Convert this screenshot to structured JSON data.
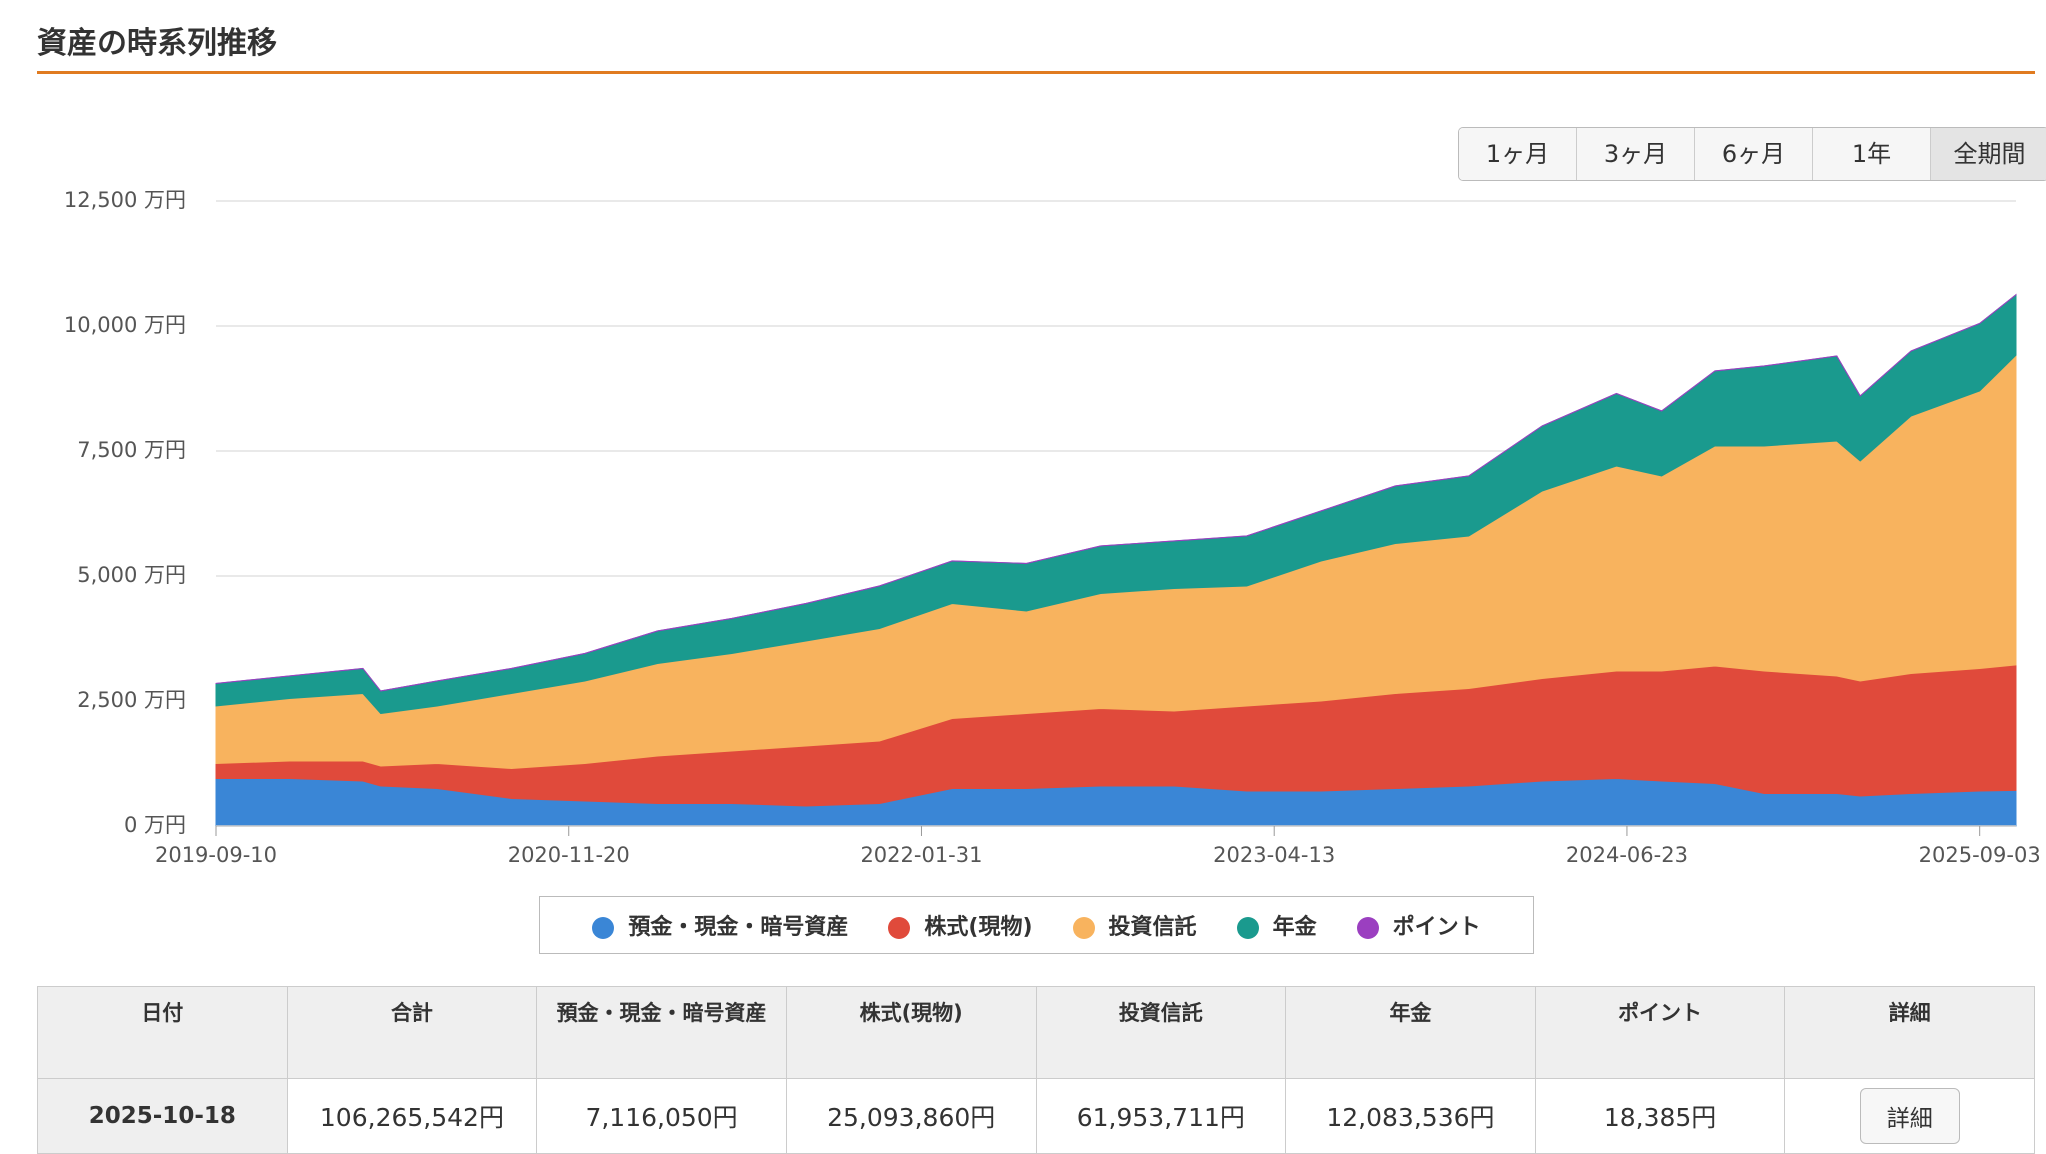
{
  "header": {
    "title": "資産の時系列推移"
  },
  "range_buttons": [
    "1ヶ月",
    "3ヶ月",
    "6ヶ月",
    "1年",
    "全期間"
  ],
  "chart_data": {
    "type": "stacked-area",
    "x": [
      "2019-09-10",
      "2019-12-10",
      "2020-03-10",
      "2020-04-01",
      "2020-06-10",
      "2020-09-10",
      "2020-12-10",
      "2021-03-10",
      "2021-06-10",
      "2021-09-10",
      "2021-12-10",
      "2022-03-10",
      "2022-06-10",
      "2022-09-10",
      "2022-12-10",
      "2023-03-10",
      "2023-06-10",
      "2023-09-10",
      "2023-12-10",
      "2024-03-10",
      "2024-06-10",
      "2024-08-05",
      "2024-10-10",
      "2024-12-10",
      "2025-03-10",
      "2025-04-08",
      "2025-06-10",
      "2025-09-03",
      "2025-10-18"
    ],
    "xlim": [
      "2019-09-10",
      "2025-10-18"
    ],
    "xticks": [
      "2019-09-10",
      "2020-11-20",
      "2022-01-31",
      "2023-04-13",
      "2024-06-23",
      "2025-09-03"
    ],
    "ylim": [
      0,
      12500
    ],
    "yticks": [
      {
        "value": 0,
        "label": "0 万円"
      },
      {
        "value": 2500,
        "label": "2,500 万円"
      },
      {
        "value": 5000,
        "label": "5,000 万円"
      },
      {
        "value": 7500,
        "label": "7,500 万円"
      },
      {
        "value": 10000,
        "label": "10,000 万円"
      },
      {
        "value": 12500,
        "label": "12,500 万円"
      }
    ],
    "grid": true,
    "series": [
      {
        "name": "預金・現金・暗号資産",
        "color": "#3a86d6",
        "values": [
          950,
          950,
          900,
          800,
          750,
          550,
          500,
          450,
          450,
          400,
          450,
          750,
          750,
          800,
          800,
          700,
          700,
          750,
          800,
          900,
          950,
          900,
          850,
          650,
          650,
          600,
          650,
          700,
          712
        ]
      },
      {
        "name": "株式(現物)",
        "color": "#e04a3b",
        "values": [
          300,
          350,
          400,
          400,
          500,
          600,
          750,
          950,
          1050,
          1200,
          1250,
          1400,
          1500,
          1550,
          1500,
          1700,
          1800,
          1900,
          1950,
          2050,
          2150,
          2200,
          2350,
          2450,
          2350,
          2300,
          2400,
          2450,
          2509
        ]
      },
      {
        "name": "投資信託",
        "color": "#f8b35e",
        "values": [
          1150,
          1250,
          1350,
          1050,
          1150,
          1500,
          1650,
          1850,
          1950,
          2100,
          2250,
          2300,
          2050,
          2300,
          2450,
          2400,
          2800,
          3000,
          3050,
          3750,
          4100,
          3900,
          4400,
          4500,
          4700,
          4400,
          5150,
          5550,
          6195
        ]
      },
      {
        "name": "年金",
        "color": "#1a9a8e",
        "values": [
          450,
          450,
          500,
          450,
          500,
          500,
          550,
          650,
          700,
          750,
          850,
          850,
          950,
          950,
          950,
          1000,
          1000,
          1150,
          1200,
          1300,
          1450,
          1300,
          1500,
          1600,
          1700,
          1300,
          1300,
          1350,
          1208
        ]
      },
      {
        "name": "ポイント",
        "color": "#9b3fc0",
        "values": [
          2,
          2,
          2,
          2,
          2,
          2,
          2,
          2,
          2,
          2,
          2,
          2,
          2,
          2,
          2,
          2,
          2,
          2,
          2,
          2,
          2,
          2,
          2,
          2,
          2,
          2,
          2,
          2,
          1.8
        ]
      }
    ]
  },
  "table": {
    "headers": [
      "日付",
      "合計",
      "預金・現金・暗号資産",
      "株式(現物)",
      "投資信託",
      "年金",
      "ポイント",
      "詳細"
    ],
    "rows": [
      [
        "2025-10-18",
        "106,265,542円",
        "7,116,050円",
        "25,093,860円",
        "61,953,711円",
        "12,083,536円",
        "18,385円",
        "詳細"
      ]
    ]
  }
}
